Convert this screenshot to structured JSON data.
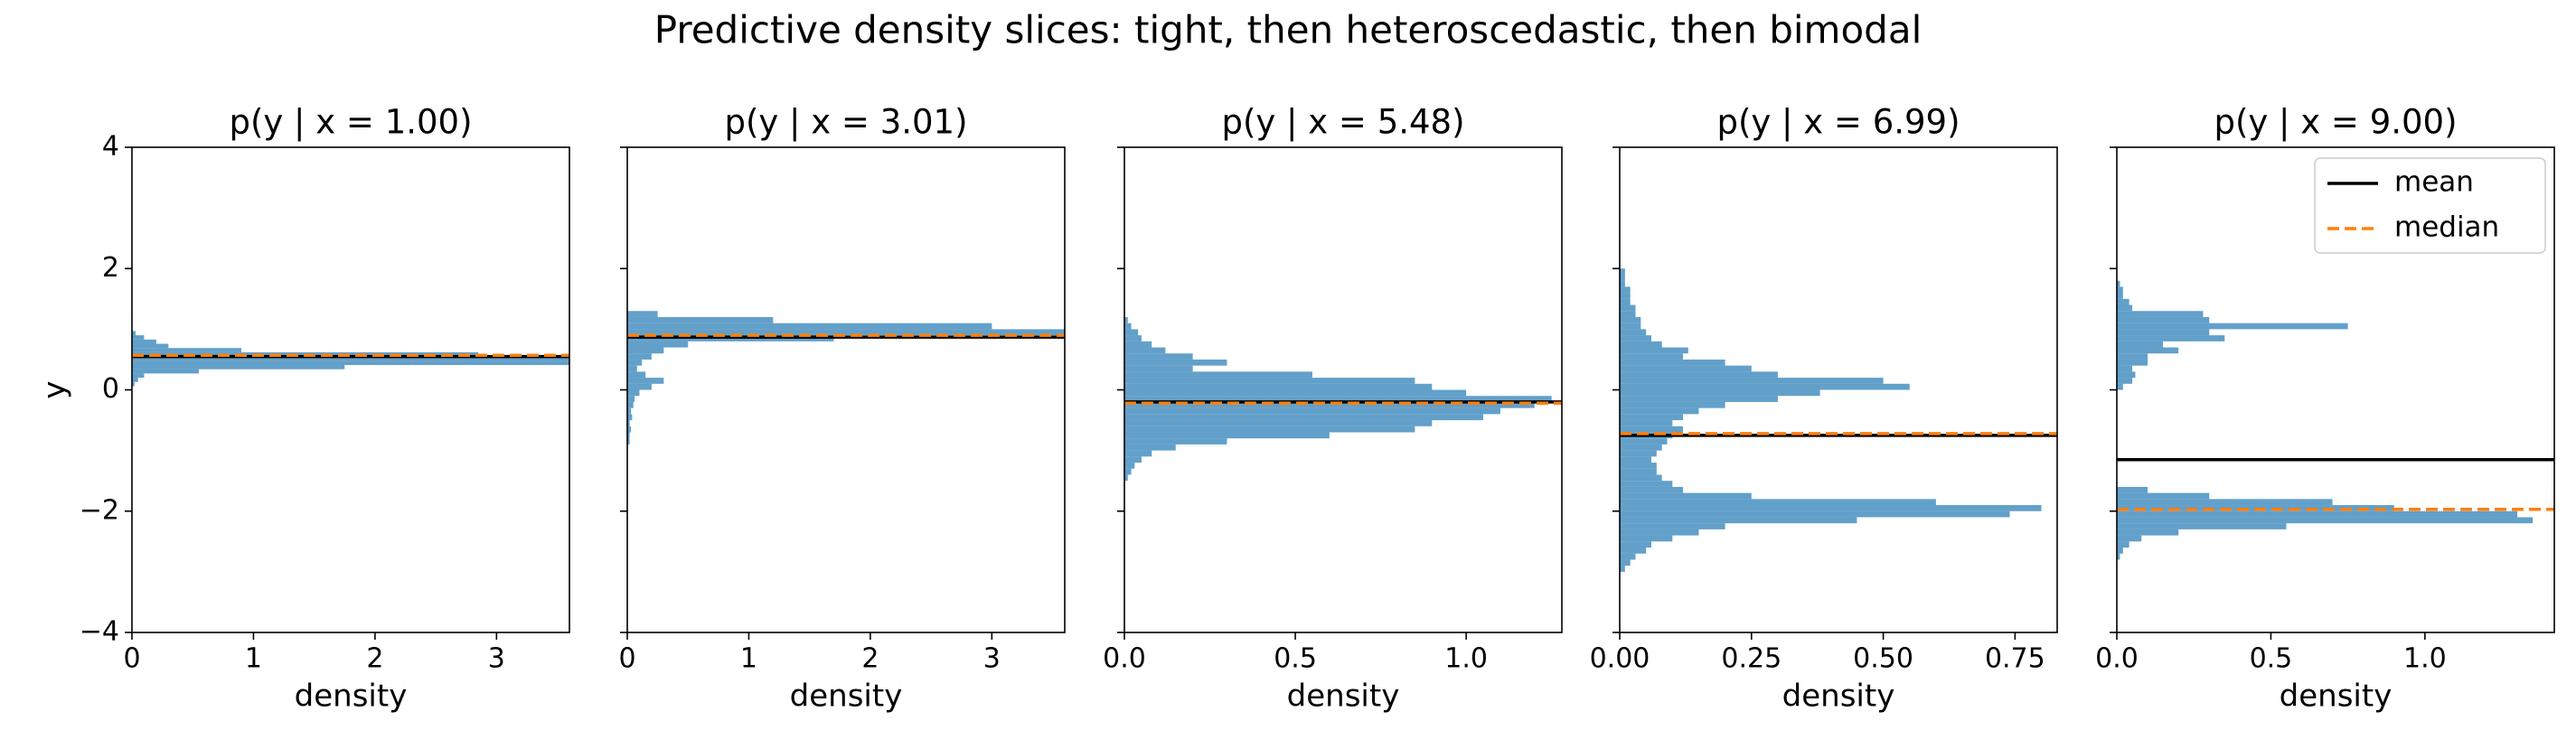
{
  "title": "Predictive density slices: tight, then heteroscedastic, then bimodal",
  "chart_data": [
    {
      "type": "histogram",
      "orientation": "horizontal",
      "title": "p(y | x = 1.00)",
      "xlabel": "density",
      "ylabel": "y",
      "color": "#1f77b4",
      "bins": [
        0.06,
        0.13,
        0.2,
        0.27,
        0.34,
        0.41,
        0.48,
        0.55,
        0.62,
        0.69,
        0.76,
        0.83,
        0.9,
        0.97
      ],
      "values": [
        0.02,
        0.05,
        0.1,
        0.55,
        1.75,
        3.6,
        3.6,
        2.85,
        0.9,
        0.3,
        0.2,
        0.1,
        0.03
      ],
      "mean": 0.55,
      "median": 0.57,
      "xlim": [
        0,
        3.6
      ],
      "xticks": [
        0,
        1,
        2,
        3
      ],
      "ylim": [
        -4,
        4
      ],
      "yticks": [
        {
          "value": -4,
          "label": "−4"
        },
        {
          "value": -2,
          "label": "−2"
        },
        0,
        2,
        4
      ]
    },
    {
      "type": "histogram",
      "orientation": "horizontal",
      "title": "p(y | x = 3.01)",
      "xlabel": "density",
      "color": "#1f77b4",
      "bins": [
        -0.9,
        -0.8,
        -0.7,
        -0.6,
        -0.5,
        -0.4,
        -0.3,
        -0.2,
        -0.1,
        0.0,
        0.1,
        0.2,
        0.3,
        0.4,
        0.5,
        0.6,
        0.7,
        0.8,
        0.9,
        1.0,
        1.1,
        1.2,
        1.3
      ],
      "values": [
        0.02,
        0.02,
        0.03,
        0.02,
        0.04,
        0.03,
        0.05,
        0.06,
        0.1,
        0.2,
        0.3,
        0.15,
        0.08,
        0.12,
        0.2,
        0.3,
        0.5,
        1.7,
        3.6,
        3.0,
        1.2,
        0.25
      ],
      "mean": 0.87,
      "median": 0.9,
      "xlim": [
        0,
        3.6
      ],
      "xticks": [
        0,
        1,
        2,
        3
      ],
      "ylim": [
        -4,
        4
      ],
      "yticks": [
        -4,
        -2,
        0,
        2,
        4
      ]
    },
    {
      "type": "histogram",
      "orientation": "horizontal",
      "title": "p(y | x = 5.48)",
      "xlabel": "density",
      "color": "#1f77b4",
      "bins": [
        -1.5,
        -1.4,
        -1.3,
        -1.2,
        -1.1,
        -1.0,
        -0.9,
        -0.8,
        -0.7,
        -0.6,
        -0.5,
        -0.4,
        -0.3,
        -0.2,
        -0.1,
        0.0,
        0.1,
        0.2,
        0.3,
        0.4,
        0.5,
        0.6,
        0.7,
        0.8,
        0.9,
        1.0,
        1.1,
        1.2
      ],
      "values": [
        0.01,
        0.02,
        0.03,
        0.05,
        0.08,
        0.15,
        0.3,
        0.6,
        0.85,
        0.9,
        1.05,
        1.1,
        1.2,
        1.25,
        1.0,
        0.9,
        0.85,
        0.55,
        0.2,
        0.3,
        0.2,
        0.12,
        0.08,
        0.05,
        0.04,
        0.02,
        0.01
      ],
      "mean": -0.2,
      "median": -0.22,
      "xlim": [
        0,
        1.28
      ],
      "xticks": [
        {
          "value": 0,
          "label": "0.0"
        },
        0.5,
        {
          "value": 1,
          "label": "1.0"
        }
      ],
      "ylim": [
        -4,
        4
      ],
      "yticks": [
        -4,
        -2,
        0,
        2,
        4
      ]
    },
    {
      "type": "histogram",
      "orientation": "horizontal",
      "title": "p(y | x = 6.99)",
      "xlabel": "density",
      "color": "#1f77b4",
      "bins": [
        -3.0,
        -2.9,
        -2.8,
        -2.7,
        -2.6,
        -2.5,
        -2.4,
        -2.3,
        -2.2,
        -2.1,
        -2.0,
        -1.9,
        -1.8,
        -1.7,
        -1.6,
        -1.5,
        -1.4,
        -1.3,
        -1.2,
        -1.1,
        -1.0,
        -0.9,
        -0.8,
        -0.7,
        -0.6,
        -0.5,
        -0.4,
        -0.3,
        -0.2,
        -0.1,
        0.0,
        0.1,
        0.2,
        0.3,
        0.4,
        0.5,
        0.6,
        0.7,
        0.8,
        0.9,
        1.0,
        1.1,
        1.2,
        1.3,
        1.4,
        1.5,
        1.6,
        1.7,
        1.8,
        1.9,
        2.0
      ],
      "values": [
        0.01,
        0.02,
        0.03,
        0.05,
        0.06,
        0.1,
        0.15,
        0.2,
        0.45,
        0.74,
        0.8,
        0.6,
        0.25,
        0.12,
        0.1,
        0.08,
        0.07,
        0.07,
        0.06,
        0.07,
        0.08,
        0.09,
        0.1,
        0.12,
        0.1,
        0.12,
        0.15,
        0.2,
        0.3,
        0.38,
        0.55,
        0.5,
        0.3,
        0.25,
        0.2,
        0.12,
        0.13,
        0.08,
        0.06,
        0.05,
        0.04,
        0.04,
        0.03,
        0.03,
        0.02,
        0.02,
        0.02,
        0.01,
        0.01,
        0.01
      ],
      "mean": -0.75,
      "median": -0.72,
      "xlim": [
        0,
        0.83
      ],
      "xticks": [
        {
          "value": 0,
          "label": "0.00"
        },
        0.25,
        {
          "value": 0.5,
          "label": "0.50"
        },
        0.75
      ],
      "ylim": [
        -4,
        4
      ],
      "yticks": [
        -4,
        -2,
        0,
        2,
        4
      ]
    },
    {
      "type": "histogram",
      "orientation": "horizontal",
      "title": "p(y | x = 9.00)",
      "xlabel": "density",
      "color": "#1f77b4",
      "bins": [
        -2.8,
        -2.7,
        -2.6,
        -2.5,
        -2.4,
        -2.3,
        -2.2,
        -2.1,
        -2.0,
        -1.9,
        -1.8,
        -1.7,
        -1.6,
        -1.5,
        -1.4,
        -1.3,
        -1.2,
        -1.1,
        -1.0,
        -0.9,
        -0.8,
        -0.7,
        -0.6,
        -0.5,
        -0.4,
        -0.3,
        -0.2,
        -0.1,
        0.0,
        0.1,
        0.2,
        0.3,
        0.4,
        0.5,
        0.6,
        0.7,
        0.8,
        0.9,
        1.0,
        1.1,
        1.2,
        1.3,
        1.4,
        1.5,
        1.6,
        1.7,
        1.8
      ],
      "values": [
        0.01,
        0.02,
        0.04,
        0.08,
        0.2,
        0.55,
        1.35,
        1.3,
        0.9,
        0.7,
        0.3,
        0.1,
        0,
        0,
        0,
        0,
        0,
        0,
        0,
        0,
        0,
        0,
        0,
        0,
        0,
        0,
        0,
        0,
        0.02,
        0.05,
        0.06,
        0.05,
        0.1,
        0.1,
        0.2,
        0.15,
        0.35,
        0.3,
        0.75,
        0.3,
        0.28,
        0.05,
        0.04,
        0.02,
        0.02,
        0.01
      ],
      "mean": -1.15,
      "median": -1.97,
      "xlim": [
        0,
        1.42
      ],
      "xticks": [
        {
          "value": 0,
          "label": "0.0"
        },
        0.5,
        {
          "value": 1,
          "label": "1.0"
        }
      ],
      "ylim": [
        -4,
        4
      ],
      "yticks": [
        -4,
        -2,
        0,
        2,
        4
      ],
      "legend": {
        "loc": "upper right",
        "entries": [
          {
            "name": "mean",
            "color": "#000000",
            "dashed": false
          },
          {
            "name": "median",
            "color": "#ff7f0e",
            "dashed": true
          }
        ]
      }
    }
  ]
}
